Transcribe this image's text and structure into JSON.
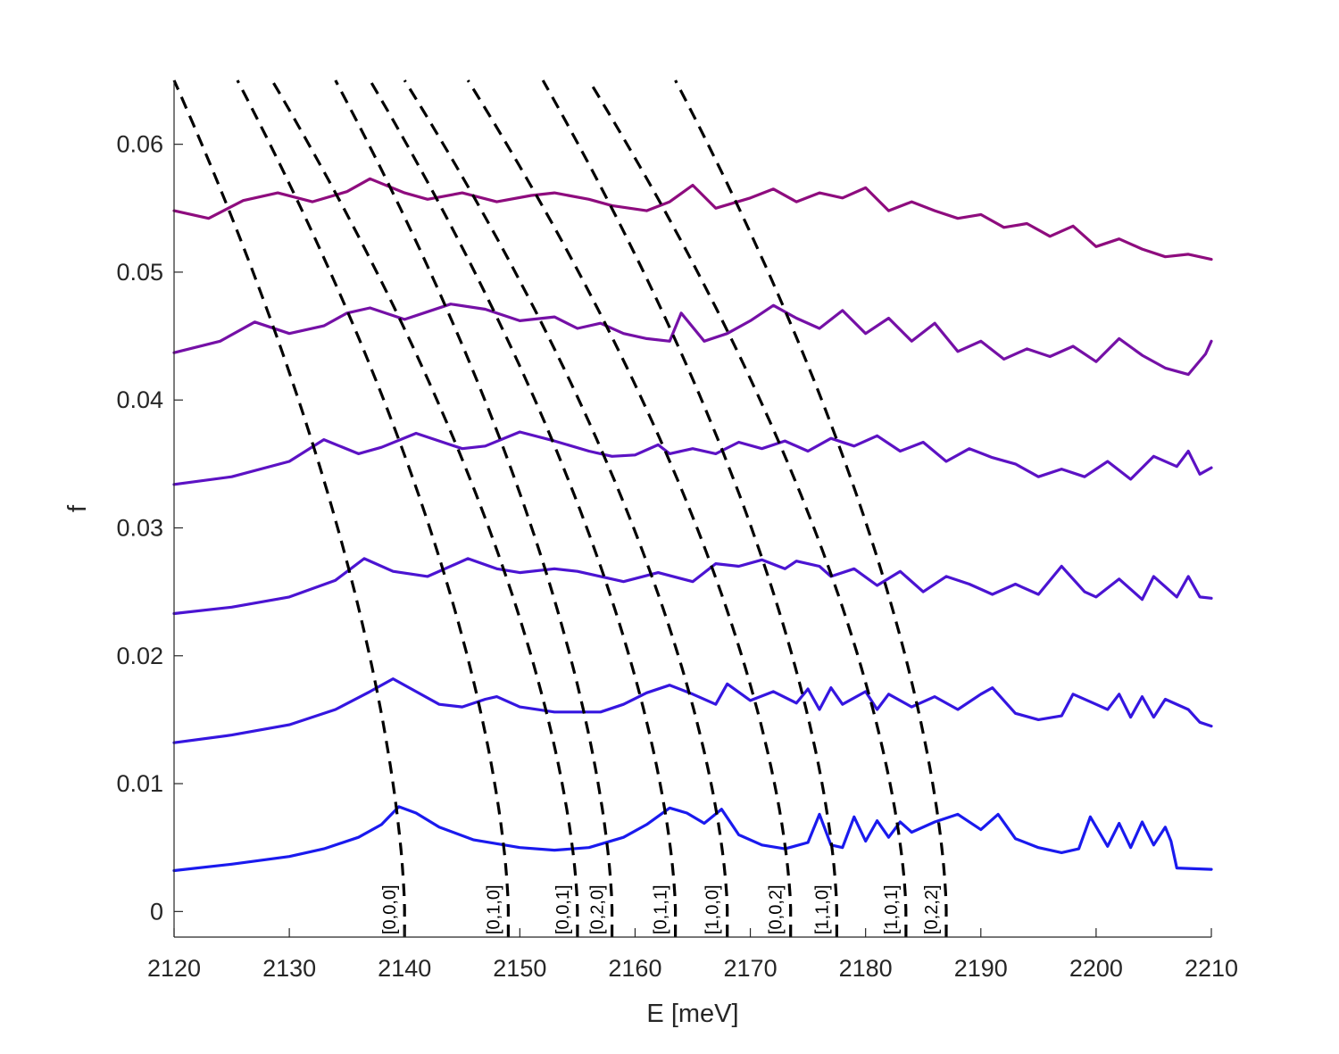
{
  "chart_data": {
    "type": "line",
    "title": "",
    "xlabel": "E [meV]",
    "ylabel": "f",
    "xlim": [
      2120,
      2210
    ],
    "ylim": [
      -0.002,
      0.065
    ],
    "xticks": [
      2120,
      2130,
      2140,
      2150,
      2160,
      2170,
      2180,
      2190,
      2200,
      2210
    ],
    "yticks": [
      0,
      0.01,
      0.02,
      0.03,
      0.04,
      0.05,
      0.06
    ],
    "ytick_labels": [
      "0",
      "0.01",
      "0.02",
      "0.03",
      "0.04",
      "0.05",
      "0.06"
    ],
    "grid": false,
    "legend": "none",
    "series": [
      {
        "color": "#1a1aee",
        "x": [
          2120,
          2125,
          2130,
          2133,
          2136,
          2138,
          2139.5,
          2141,
          2143,
          2146,
          2150,
          2153,
          2156,
          2159,
          2161,
          2163,
          2164.5,
          2166,
          2167.5,
          2169,
          2171,
          2173,
          2175,
          2176,
          2177,
          2178,
          2179,
          2180,
          2181,
          2182,
          2183,
          2184,
          2186,
          2188,
          2190,
          2191.5,
          2193,
          2195,
          2197,
          2198.5,
          2199.5,
          2201,
          2202,
          2203,
          2204,
          2205,
          2206,
          2206.5,
          2207,
          2210
        ],
        "y": [
          0.0032,
          0.0037,
          0.0043,
          0.0049,
          0.0058,
          0.0068,
          0.0082,
          0.0077,
          0.0066,
          0.0056,
          0.005,
          0.0048,
          0.005,
          0.0058,
          0.0068,
          0.0081,
          0.0077,
          0.0069,
          0.008,
          0.006,
          0.0052,
          0.0049,
          0.0054,
          0.0076,
          0.0052,
          0.005,
          0.0074,
          0.0055,
          0.0071,
          0.0058,
          0.007,
          0.0062,
          0.007,
          0.0076,
          0.0064,
          0.0076,
          0.0057,
          0.005,
          0.0046,
          0.0049,
          0.0074,
          0.0051,
          0.0069,
          0.005,
          0.007,
          0.0052,
          0.0066,
          0.0055,
          0.0034,
          0.0033
        ]
      },
      {
        "color": "#3516e0",
        "x": [
          2120,
          2125,
          2130,
          2134,
          2137,
          2139,
          2141,
          2143,
          2145,
          2147,
          2148,
          2150,
          2153,
          2157,
          2159,
          2161,
          2163,
          2165,
          2167,
          2168,
          2170,
          2172,
          2174,
          2175,
          2176,
          2177,
          2178,
          2180,
          2181,
          2182,
          2184,
          2186,
          2188,
          2190,
          2191,
          2193,
          2195,
          2197,
          2198,
          2200,
          2201,
          2202,
          2203,
          2204,
          2205,
          2206,
          2208,
          2209,
          2210
        ],
        "y": [
          0.0132,
          0.0138,
          0.0146,
          0.0158,
          0.0172,
          0.0182,
          0.0172,
          0.0162,
          0.016,
          0.0166,
          0.0168,
          0.016,
          0.0156,
          0.0156,
          0.0162,
          0.0171,
          0.0177,
          0.017,
          0.0162,
          0.0178,
          0.0165,
          0.0172,
          0.0163,
          0.0174,
          0.0158,
          0.0175,
          0.0162,
          0.0172,
          0.0158,
          0.017,
          0.016,
          0.0168,
          0.0158,
          0.017,
          0.0175,
          0.0155,
          0.015,
          0.0153,
          0.017,
          0.0162,
          0.0158,
          0.017,
          0.0152,
          0.0168,
          0.0152,
          0.0166,
          0.0158,
          0.0148,
          0.0145
        ]
      },
      {
        "color": "#4b14d2",
        "x": [
          2120,
          2125,
          2130,
          2134,
          2136.5,
          2139,
          2142,
          2145.5,
          2148,
          2150,
          2153,
          2155,
          2157,
          2159,
          2162,
          2165,
          2167,
          2169,
          2171,
          2173,
          2174,
          2176,
          2177,
          2179,
          2181,
          2183,
          2185,
          2187,
          2189,
          2191,
          2193,
          2195,
          2197,
          2199,
          2200,
          2202,
          2204,
          2205,
          2207,
          2208,
          2209,
          2210
        ],
        "y": [
          0.0233,
          0.0238,
          0.0246,
          0.0259,
          0.0276,
          0.0266,
          0.0262,
          0.0276,
          0.0268,
          0.0265,
          0.0268,
          0.0266,
          0.0262,
          0.0258,
          0.0265,
          0.0258,
          0.0272,
          0.027,
          0.0275,
          0.0268,
          0.0274,
          0.027,
          0.0262,
          0.0268,
          0.0255,
          0.0266,
          0.025,
          0.0262,
          0.0256,
          0.0248,
          0.0256,
          0.0248,
          0.027,
          0.025,
          0.0246,
          0.026,
          0.0244,
          0.0262,
          0.0246,
          0.0262,
          0.0246,
          0.0245
        ]
      },
      {
        "color": "#5c12c4",
        "x": [
          2120,
          2125,
          2130,
          2133,
          2136,
          2138,
          2141,
          2143,
          2145,
          2147,
          2150,
          2153,
          2156,
          2158,
          2160,
          2162,
          2163,
          2165,
          2167,
          2169,
          2171,
          2173,
          2175,
          2177,
          2179,
          2181,
          2183,
          2185,
          2187,
          2189,
          2191,
          2193,
          2195,
          2197,
          2199,
          2201,
          2203,
          2205,
          2207,
          2208,
          2209,
          2210
        ],
        "y": [
          0.0334,
          0.034,
          0.0352,
          0.0369,
          0.0358,
          0.0363,
          0.0374,
          0.0368,
          0.0362,
          0.0364,
          0.0375,
          0.0368,
          0.036,
          0.0356,
          0.0357,
          0.0365,
          0.0358,
          0.0362,
          0.0358,
          0.0367,
          0.0362,
          0.0368,
          0.036,
          0.037,
          0.0364,
          0.0372,
          0.036,
          0.0367,
          0.0352,
          0.0362,
          0.0355,
          0.035,
          0.034,
          0.0346,
          0.034,
          0.0352,
          0.0338,
          0.0356,
          0.0348,
          0.036,
          0.0342,
          0.0347
        ]
      },
      {
        "color": "#7510a6",
        "x": [
          2120,
          2124,
          2127,
          2130,
          2133,
          2135,
          2137,
          2140,
          2142,
          2144,
          2147,
          2150,
          2153,
          2155,
          2157,
          2159,
          2161,
          2163,
          2164,
          2166,
          2168,
          2170,
          2172,
          2174,
          2176,
          2178,
          2180,
          2182,
          2184,
          2186,
          2188,
          2190,
          2192,
          2194,
          2196,
          2198,
          2200,
          2202,
          2204,
          2206,
          2208,
          2209.5,
          2210
        ],
        "y": [
          0.0437,
          0.0446,
          0.0461,
          0.0452,
          0.0458,
          0.0468,
          0.0472,
          0.0463,
          0.0469,
          0.0475,
          0.0471,
          0.0462,
          0.0465,
          0.0456,
          0.046,
          0.0452,
          0.0448,
          0.0446,
          0.0468,
          0.0446,
          0.0452,
          0.0462,
          0.0474,
          0.0464,
          0.0456,
          0.047,
          0.0452,
          0.0464,
          0.0446,
          0.046,
          0.0438,
          0.0446,
          0.0432,
          0.044,
          0.0434,
          0.0442,
          0.043,
          0.0448,
          0.0435,
          0.0425,
          0.042,
          0.0436,
          0.0446
        ]
      },
      {
        "color": "#8e0c7e",
        "x": [
          2120,
          2123,
          2126,
          2129,
          2132,
          2135,
          2137,
          2140,
          2142,
          2145,
          2148,
          2151,
          2153,
          2156,
          2158,
          2161,
          2163,
          2165,
          2167,
          2170,
          2172,
          2174,
          2176,
          2178,
          2180,
          2182,
          2184,
          2186,
          2188,
          2190,
          2192,
          2194,
          2196,
          2198,
          2200,
          2202,
          2204,
          2206,
          2208,
          2210
        ],
        "y": [
          0.0548,
          0.0542,
          0.0556,
          0.0562,
          0.0555,
          0.0563,
          0.0573,
          0.0562,
          0.0557,
          0.0562,
          0.0555,
          0.056,
          0.0562,
          0.0557,
          0.0552,
          0.0548,
          0.0555,
          0.0568,
          0.055,
          0.0558,
          0.0565,
          0.0555,
          0.0562,
          0.0558,
          0.0566,
          0.0548,
          0.0555,
          0.0548,
          0.0542,
          0.0545,
          0.0535,
          0.0538,
          0.0528,
          0.0536,
          0.052,
          0.0526,
          0.0518,
          0.0512,
          0.0514,
          0.051
        ]
      }
    ],
    "dashed_curves": [
      {
        "label": "[0,0,0]",
        "f_at_zero": 2140.0,
        "f_at_top": 2120.0
      },
      {
        "label": "[0,1,0]",
        "f_at_zero": 2149.0,
        "f_at_top": 2125.5
      },
      {
        "label": "[0,0,1]",
        "f_at_zero": 2155.0,
        "f_at_top": 2128.5
      },
      {
        "label": "[0,2,0]",
        "f_at_zero": 2158.0,
        "f_at_top": 2134.0
      },
      {
        "label": "[0,1,1]",
        "f_at_zero": 2163.5,
        "f_at_top": 2137.0
      },
      {
        "label": "[1,0,0]",
        "f_at_zero": 2168.0,
        "f_at_top": 2140.0
      },
      {
        "label": "[0,0,2]",
        "f_at_zero": 2173.5,
        "f_at_top": 2145.5
      },
      {
        "label": "[1,1,0]",
        "f_at_zero": 2177.5,
        "f_at_top": 2152.0
      },
      {
        "label": "[1,0,1]",
        "f_at_zero": 2183.5,
        "f_at_top": 2156.0
      },
      {
        "label": "[0,2,2]",
        "f_at_zero": 2187.0,
        "f_at_top": 2163.5
      }
    ]
  }
}
